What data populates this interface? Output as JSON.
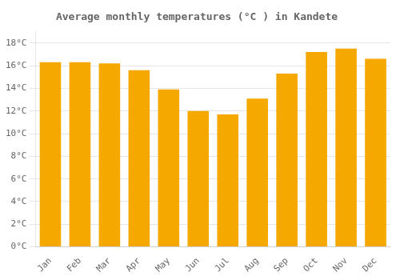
{
  "chart_data": {
    "type": "bar",
    "title": "Average monthly temperatures (°C ) in Kandete",
    "categories": [
      "Jan",
      "Feb",
      "Mar",
      "Apr",
      "May",
      "Jun",
      "Jul",
      "Aug",
      "Sep",
      "Oct",
      "Nov",
      "Dec"
    ],
    "values": [
      16.3,
      16.3,
      16.2,
      15.6,
      13.9,
      12.0,
      11.7,
      13.1,
      15.3,
      17.2,
      17.5,
      16.6
    ],
    "color": "#F5A800",
    "ylim": [
      0,
      19
    ],
    "yticks": [
      {
        "value": 0,
        "label": "0°C"
      },
      {
        "value": 2,
        "label": "2°C"
      },
      {
        "value": 4,
        "label": "4°C"
      },
      {
        "value": 6,
        "label": "6°C"
      },
      {
        "value": 8,
        "label": "8°C"
      },
      {
        "value": 10,
        "label": "10°C"
      },
      {
        "value": 12,
        "label": "12°C"
      },
      {
        "value": 14,
        "label": "14°C"
      },
      {
        "value": 16,
        "label": "16°C"
      },
      {
        "value": 18,
        "label": "18°C"
      }
    ],
    "grid": true
  }
}
